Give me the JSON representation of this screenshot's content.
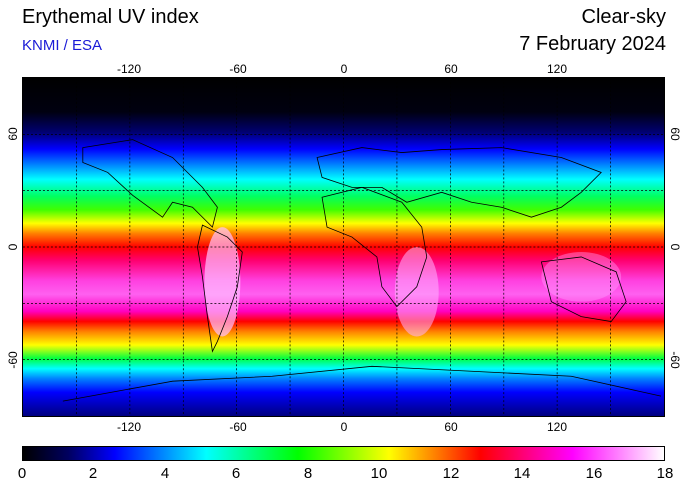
{
  "header": {
    "title": "Erythemal UV index",
    "credit": "KNMI / ESA",
    "mode": "Clear-sky",
    "date": "7 February 2024"
  },
  "map": {
    "lon_ticks": [
      "-120",
      "-60",
      "0",
      "60",
      "120"
    ],
    "lat_ticks": [
      "60",
      "0",
      "-60"
    ],
    "lon_values": [
      -120,
      -60,
      0,
      60,
      120
    ],
    "lat_values": [
      60,
      0,
      -60
    ],
    "extent": {
      "lon": [
        -180,
        180
      ],
      "lat": [
        -90,
        90
      ]
    },
    "grid": "dotted, every 30 degrees"
  },
  "colorbar": {
    "labels": [
      "0",
      "2",
      "4",
      "6",
      "8",
      "10",
      "12",
      "14",
      "16",
      "18"
    ],
    "values": [
      0,
      2,
      4,
      6,
      8,
      10,
      12,
      14,
      16,
      18
    ],
    "stops": [
      "#000000",
      "#000060",
      "#0000ff",
      "#0080ff",
      "#00ffff",
      "#00ff80",
      "#00ff00",
      "#80ff00",
      "#ffff00",
      "#ff8000",
      "#ff0000",
      "#ff0080",
      "#ff00ff",
      "#ff80ff",
      "#ffffff"
    ]
  }
}
